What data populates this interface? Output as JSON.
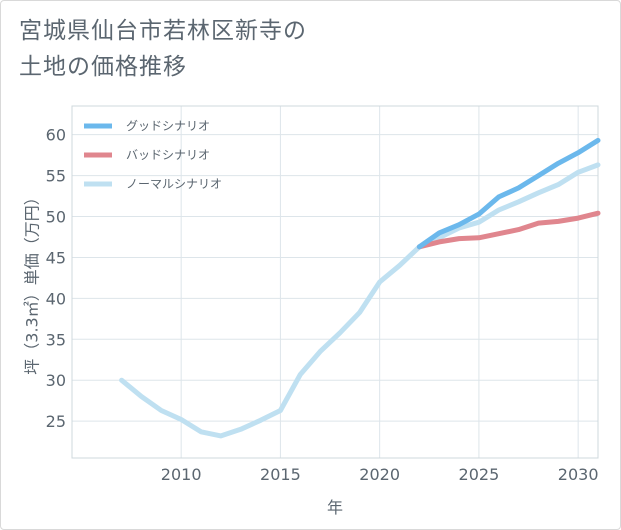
{
  "header": {
    "title_line1": "宮城県仙台市若林区新寺の",
    "title_line2": "土地の価格推移"
  },
  "chart_data": {
    "type": "line",
    "xlabel": "年",
    "ylabel": "坪（3.3㎡）単価（万円）",
    "xlim": [
      2004.5,
      2031
    ],
    "ylim": [
      20.5,
      63.5
    ],
    "x_ticks": [
      2010,
      2015,
      2020,
      2025,
      2030
    ],
    "y_ticks": [
      25,
      30,
      35,
      40,
      45,
      50,
      55,
      60
    ],
    "grid": true,
    "legend_position": "top-left",
    "series": [
      {
        "name": "グッドシナリオ",
        "color": "#6bb8ec",
        "x": [
          2022,
          2023,
          2024,
          2025,
          2026,
          2027,
          2028,
          2029,
          2030,
          2031
        ],
        "y": [
          46.3,
          48.0,
          49.0,
          50.3,
          52.4,
          53.5,
          55.0,
          56.5,
          57.8,
          59.3
        ]
      },
      {
        "name": "バッドシナリオ",
        "color": "#e0868e",
        "x": [
          2022,
          2023,
          2024,
          2025,
          2026,
          2027,
          2028,
          2029,
          2030,
          2031
        ],
        "y": [
          46.3,
          46.9,
          47.3,
          47.4,
          47.9,
          48.4,
          49.2,
          49.4,
          49.8,
          50.4
        ]
      },
      {
        "name": "ノーマルシナリオ",
        "color": "#bfe0f1",
        "x": [
          2007,
          2008,
          2009,
          2010,
          2011,
          2012,
          2013,
          2014,
          2015,
          2016,
          2017,
          2018,
          2019,
          2020,
          2021,
          2022,
          2023,
          2024,
          2025,
          2026,
          2027,
          2028,
          2029,
          2030,
          2031
        ],
        "y": [
          30.0,
          28.0,
          26.3,
          25.2,
          23.7,
          23.2,
          24.0,
          25.1,
          26.3,
          30.7,
          33.5,
          35.8,
          38.3,
          42.0,
          44.0,
          46.3,
          47.4,
          48.6,
          49.3,
          50.8,
          51.8,
          52.9,
          53.9,
          55.4,
          56.3
        ]
      }
    ]
  }
}
